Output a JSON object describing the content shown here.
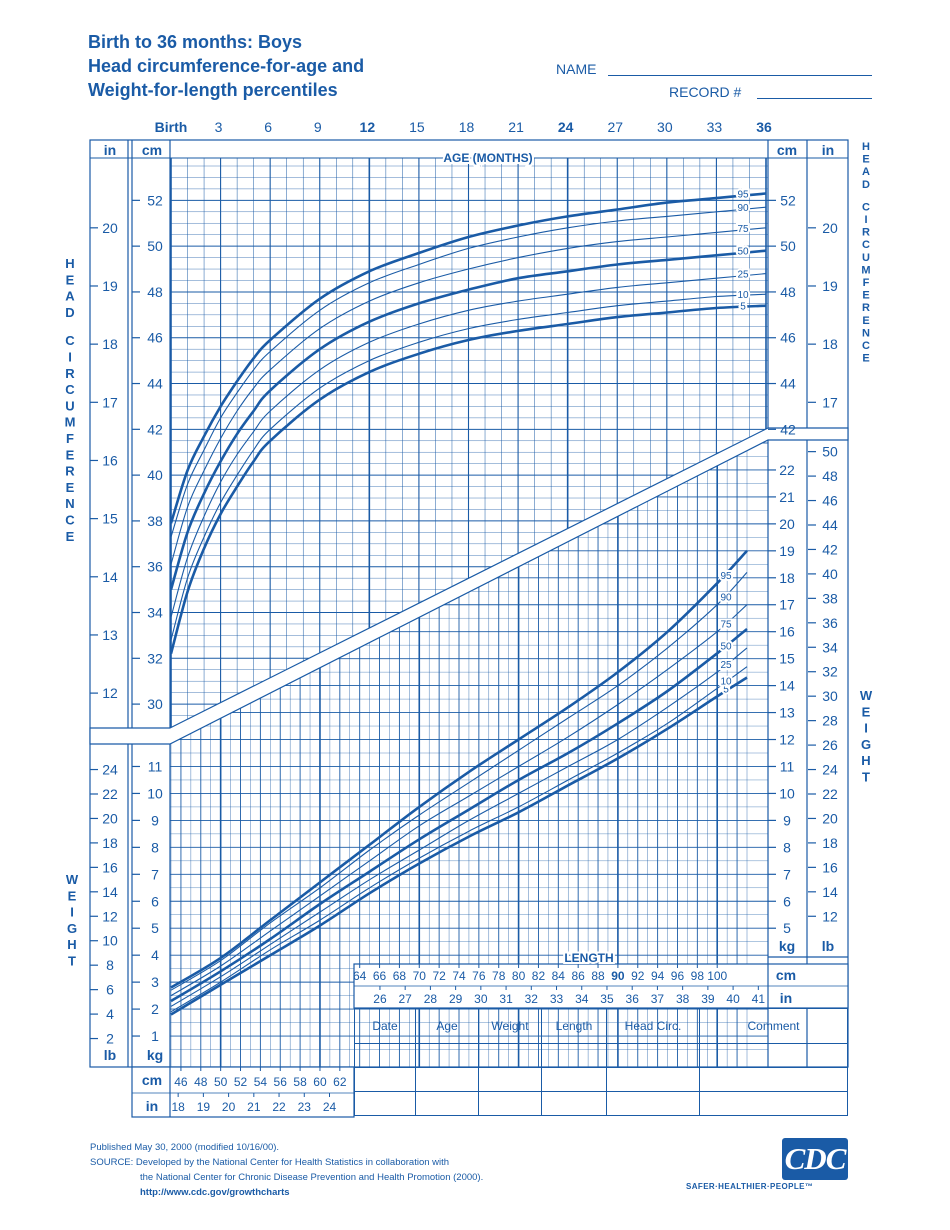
{
  "title": {
    "line1": "Birth to 36 months: Boys",
    "line2": "Head circumference-for-age and",
    "line3": "Weight-for-length percentiles"
  },
  "fields": {
    "name_label": "NAME",
    "record_label": "RECORD #"
  },
  "colors": {
    "primary": "#1a5ba6",
    "grid": "#1a5ba6",
    "background": "#ffffff"
  },
  "age_axis": {
    "label": "AGE (MONTHS)",
    "ticks": [
      "Birth",
      "3",
      "6",
      "9",
      "12",
      "15",
      "18",
      "21",
      "24",
      "27",
      "30",
      "33",
      "36"
    ],
    "bold": [
      "Birth",
      "12",
      "24",
      "36"
    ]
  },
  "length_axis": {
    "label": "LENGTH",
    "cm_ticks_upper": [
      "64",
      "66",
      "68",
      "70",
      "72",
      "74",
      "76",
      "78",
      "80",
      "82",
      "84",
      "86",
      "88",
      "90",
      "92",
      "94",
      "96",
      "98",
      "100"
    ],
    "in_ticks_upper": [
      "26",
      "27",
      "28",
      "29",
      "30",
      "31",
      "32",
      "33",
      "34",
      "35",
      "36",
      "37",
      "38",
      "39",
      "40",
      "41"
    ],
    "cm_ticks_lower": [
      "46",
      "48",
      "50",
      "52",
      "54",
      "56",
      "58",
      "60",
      "62"
    ],
    "in_ticks_lower": [
      "18",
      "19",
      "20",
      "21",
      "22",
      "23",
      "24"
    ],
    "cm_unit": "cm",
    "in_unit": "in"
  },
  "hc_axis": {
    "cm_unit": "cm",
    "in_unit": "in",
    "cm_ticks": [
      "52",
      "50",
      "48",
      "46",
      "44",
      "42",
      "40",
      "38",
      "36",
      "34",
      "32",
      "30"
    ],
    "cm_ticks_right": [
      "52",
      "50",
      "48",
      "46",
      "44",
      "42"
    ],
    "in_ticks": [
      "20",
      "19",
      "18",
      "17",
      "16",
      "15",
      "14",
      "13",
      "12"
    ],
    "in_ticks_right": [
      "20",
      "19",
      "18",
      "17"
    ],
    "side_label": "HEAD CIRCUMFERENCE"
  },
  "weight_axis": {
    "kg_unit": "kg",
    "lb_unit": "lb",
    "kg_ticks_left": [
      "11",
      "10",
      "9",
      "8",
      "7",
      "6",
      "5",
      "4",
      "3",
      "2",
      "1"
    ],
    "lb_ticks_left": [
      "24",
      "22",
      "20",
      "18",
      "16",
      "14",
      "12",
      "10",
      "8",
      "6",
      "4",
      "2"
    ],
    "kg_ticks_right": [
      "22",
      "21",
      "20",
      "19",
      "18",
      "17",
      "16",
      "15",
      "14",
      "13",
      "12",
      "11",
      "10",
      "9",
      "8",
      "7",
      "6",
      "5"
    ],
    "lb_ticks_right": [
      "50",
      "48",
      "46",
      "44",
      "42",
      "40",
      "38",
      "36",
      "34",
      "32",
      "30",
      "28",
      "26",
      "24",
      "22",
      "20",
      "18",
      "16",
      "14",
      "12"
    ],
    "side_label": "WEIGHT"
  },
  "chart_data": [
    {
      "type": "line",
      "title": "Head circumference-for-age",
      "xlabel": "AGE (MONTHS)",
      "ylabel": "cm",
      "xlim": [
        0,
        36
      ],
      "ylim": [
        29,
        53.5
      ],
      "x": [
        0,
        1,
        2,
        3,
        4,
        5,
        6,
        9,
        12,
        15,
        18,
        21,
        24,
        27,
        30,
        33,
        36
      ],
      "series": [
        {
          "name": "5",
          "values": [
            32.2,
            34.9,
            36.8,
            38.3,
            39.5,
            40.6,
            41.5,
            43.3,
            44.5,
            45.3,
            45.9,
            46.3,
            46.6,
            46.9,
            47.1,
            47.3,
            47.4
          ]
        },
        {
          "name": "10",
          "values": [
            32.8,
            35.5,
            37.3,
            38.8,
            40.0,
            41.1,
            42.0,
            43.8,
            45.0,
            45.8,
            46.4,
            46.8,
            47.1,
            47.4,
            47.6,
            47.8,
            47.9
          ]
        },
        {
          "name": "25",
          "values": [
            33.8,
            36.4,
            38.2,
            39.7,
            40.9,
            41.9,
            42.8,
            44.6,
            45.8,
            46.6,
            47.2,
            47.6,
            47.9,
            48.2,
            48.4,
            48.6,
            48.8
          ]
        },
        {
          "name": "50",
          "values": [
            35.0,
            37.5,
            39.2,
            40.6,
            41.8,
            42.8,
            43.7,
            45.5,
            46.7,
            47.5,
            48.1,
            48.6,
            48.9,
            49.2,
            49.4,
            49.6,
            49.8
          ]
        },
        {
          "name": "75",
          "values": [
            36.1,
            38.6,
            40.2,
            41.6,
            42.8,
            43.8,
            44.6,
            46.4,
            47.6,
            48.4,
            49.0,
            49.5,
            49.9,
            50.2,
            50.4,
            50.6,
            50.8
          ]
        },
        {
          "name": "90",
          "values": [
            37.3,
            39.6,
            41.1,
            42.5,
            43.6,
            44.6,
            45.4,
            47.2,
            48.4,
            49.2,
            49.9,
            50.4,
            50.8,
            51.1,
            51.3,
            51.5,
            51.7
          ]
        },
        {
          "name": "95",
          "values": [
            37.9,
            40.2,
            41.7,
            43.0,
            44.1,
            45.1,
            45.9,
            47.7,
            48.9,
            49.7,
            50.4,
            50.9,
            51.3,
            51.6,
            51.9,
            52.1,
            52.3
          ]
        }
      ]
    },
    {
      "type": "line",
      "title": "Weight-for-length",
      "xlabel": "LENGTH",
      "ylabel": "kg",
      "xlim": [
        45,
        103
      ],
      "ylim": [
        0,
        23
      ],
      "x": [
        45,
        50,
        55,
        60,
        65,
        70,
        75,
        80,
        85,
        90,
        95,
        100,
        103
      ],
      "series": [
        {
          "name": "5",
          "values": [
            1.8,
            2.9,
            4.0,
            5.1,
            6.3,
            7.4,
            8.4,
            9.3,
            10.3,
            11.3,
            12.4,
            13.6,
            14.3
          ]
        },
        {
          "name": "10",
          "values": [
            1.9,
            3.0,
            4.2,
            5.3,
            6.5,
            7.6,
            8.6,
            9.5,
            10.5,
            11.5,
            12.6,
            13.9,
            14.7
          ]
        },
        {
          "name": "25",
          "values": [
            2.1,
            3.2,
            4.4,
            5.6,
            6.8,
            7.9,
            9.0,
            10.0,
            11.0,
            12.0,
            13.2,
            14.5,
            15.4
          ]
        },
        {
          "name": "50",
          "values": [
            2.3,
            3.4,
            4.6,
            5.9,
            7.1,
            8.3,
            9.4,
            10.5,
            11.5,
            12.6,
            13.8,
            15.2,
            16.1
          ]
        },
        {
          "name": "75",
          "values": [
            2.5,
            3.6,
            4.9,
            6.2,
            7.5,
            8.8,
            9.9,
            11.0,
            12.1,
            13.3,
            14.6,
            16.0,
            17.0
          ]
        },
        {
          "name": "90",
          "values": [
            2.7,
            3.8,
            5.2,
            6.5,
            7.9,
            9.2,
            10.4,
            11.6,
            12.8,
            14.0,
            15.4,
            17.0,
            18.2
          ]
        },
        {
          "name": "95",
          "values": [
            2.8,
            3.9,
            5.3,
            6.7,
            8.1,
            9.5,
            10.8,
            12.0,
            13.2,
            14.5,
            16.0,
            17.8,
            19.0
          ]
        }
      ]
    }
  ],
  "record_table": {
    "headers": [
      "Date",
      "Age",
      "Weight",
      "Length",
      "Head  Circ.",
      "Comment"
    ]
  },
  "footer": {
    "published": "Published May 30, 2000 (modified 10/16/00).",
    "source1": "SOURCE: Developed by the National Center for Health Statistics in collaboration with",
    "source2": "the National Center for Chronic Disease Prevention and Health Promotion (2000).",
    "url": "http://www.cdc.gov/growthcharts",
    "logo": "CDC",
    "tagline": "SAFER·HEALTHIER·PEOPLE™"
  }
}
